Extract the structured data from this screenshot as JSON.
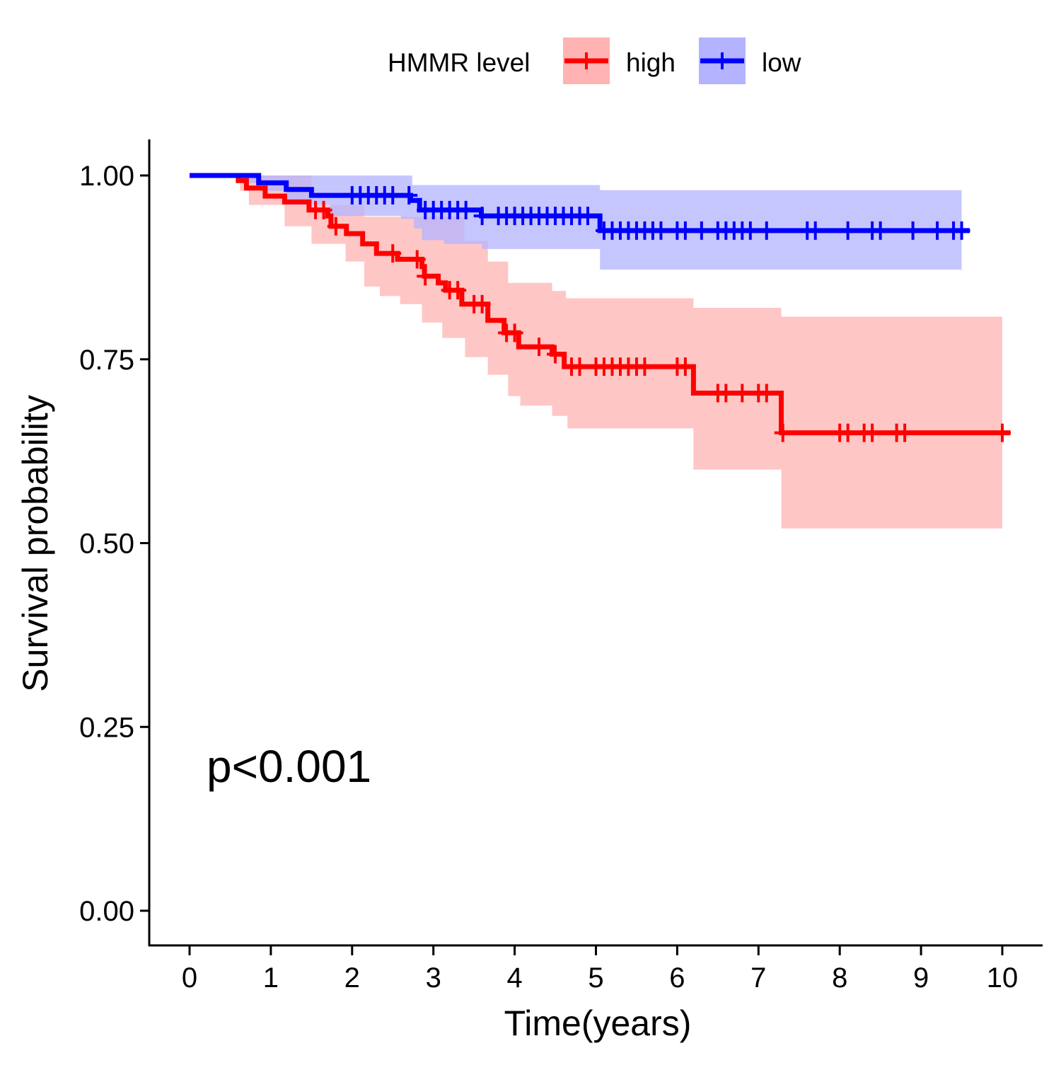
{
  "chart_data": {
    "type": "line",
    "subtype": "kaplan-meier",
    "xlabel": "Time(years)",
    "ylabel": "Survival probability",
    "xlim": [
      0,
      10
    ],
    "ylim": [
      0,
      1
    ],
    "xticks": [
      "0",
      "1",
      "2",
      "3",
      "4",
      "5",
      "6",
      "7",
      "8",
      "9",
      "10"
    ],
    "yticks": [
      "0.00",
      "0.25",
      "0.50",
      "0.75",
      "1.00"
    ],
    "grid": false,
    "legend": {
      "title": "HMMR level",
      "placement": "top",
      "entries": [
        "high",
        "low"
      ]
    },
    "annotation": "p<0.001",
    "series": [
      {
        "name": "high",
        "color": "#FF0000",
        "ci_color": "#FFB3B3",
        "end_time": 10.1,
        "steps": [
          [
            0,
            1.0
          ],
          [
            0.6,
            0.993
          ],
          [
            0.7,
            0.983
          ],
          [
            0.93,
            0.972
          ],
          [
            1.17,
            0.964
          ],
          [
            1.47,
            0.953
          ],
          [
            1.7,
            0.945
          ],
          [
            1.74,
            0.931
          ],
          [
            1.93,
            0.921
          ],
          [
            2.13,
            0.907
          ],
          [
            2.3,
            0.894
          ],
          [
            2.56,
            0.886
          ],
          [
            2.86,
            0.876
          ],
          [
            2.89,
            0.863
          ],
          [
            3.06,
            0.854
          ],
          [
            3.15,
            0.844
          ],
          [
            3.35,
            0.825
          ],
          [
            3.67,
            0.803
          ],
          [
            3.87,
            0.786
          ],
          [
            4.05,
            0.767
          ],
          [
            4.46,
            0.757
          ],
          [
            4.61,
            0.74
          ],
          [
            6.2,
            0.704
          ],
          [
            7.28,
            0.65
          ]
        ],
        "ci_upper": [
          [
            0,
            1.0
          ],
          [
            1.5,
            0.99
          ],
          [
            1.5,
            0.96
          ],
          [
            2.15,
            0.944
          ],
          [
            3.38,
            0.911
          ],
          [
            3.67,
            0.883
          ],
          [
            3.92,
            0.854
          ],
          [
            4.46,
            0.843
          ],
          [
            4.63,
            0.833
          ],
          [
            6.2,
            0.82
          ],
          [
            7.28,
            0.808
          ]
        ],
        "ci_lower": [
          [
            0,
            1.0
          ],
          [
            0.62,
            0.979
          ],
          [
            0.73,
            0.96
          ],
          [
            1.17,
            0.931
          ],
          [
            1.5,
            0.907
          ],
          [
            1.92,
            0.883
          ],
          [
            2.15,
            0.849
          ],
          [
            2.34,
            0.836
          ],
          [
            2.59,
            0.825
          ],
          [
            2.86,
            0.8
          ],
          [
            3.11,
            0.779
          ],
          [
            3.39,
            0.753
          ],
          [
            3.67,
            0.729
          ],
          [
            3.92,
            0.7
          ],
          [
            4.07,
            0.687
          ],
          [
            4.46,
            0.673
          ],
          [
            4.65,
            0.656
          ],
          [
            6.2,
            0.6
          ],
          [
            7.28,
            0.52
          ]
        ],
        "ci_end": 10.0,
        "censored": [
          1.55,
          1.65,
          1.8,
          2.5,
          2.8,
          2.9,
          3.2,
          3.3,
          3.5,
          3.6,
          3.9,
          4.0,
          4.3,
          4.5,
          4.7,
          4.8,
          5.0,
          5.1,
          5.2,
          5.3,
          5.4,
          5.5,
          5.6,
          6.0,
          6.1,
          6.5,
          6.6,
          6.8,
          7.0,
          7.1,
          7.3,
          8.0,
          8.1,
          8.3,
          8.4,
          8.7,
          8.8,
          10.0
        ]
      },
      {
        "name": "low",
        "color": "#0000FF",
        "ci_color": "#B3B3FF",
        "end_time": 9.6,
        "steps": [
          [
            0,
            1.0
          ],
          [
            0.85,
            0.99
          ],
          [
            1.19,
            0.981
          ],
          [
            1.5,
            0.973
          ],
          [
            2.72,
            0.966
          ],
          [
            2.83,
            0.953
          ],
          [
            3.59,
            0.945
          ],
          [
            5.05,
            0.925
          ]
        ],
        "ci_upper": [
          [
            0,
            1.0
          ],
          [
            2.74,
            0.987
          ],
          [
            5.05,
            0.98
          ]
        ],
        "ci_lower": [
          [
            0,
            1.0
          ],
          [
            0.62,
            0.99
          ],
          [
            0.9,
            0.979
          ],
          [
            1.19,
            0.96
          ],
          [
            1.73,
            0.945
          ],
          [
            2.6,
            0.941
          ],
          [
            2.76,
            0.928
          ],
          [
            2.86,
            0.912
          ],
          [
            3.13,
            0.907
          ],
          [
            3.6,
            0.9
          ],
          [
            5.05,
            0.872
          ]
        ],
        "ci_end": 9.5,
        "censored": [
          2.0,
          2.1,
          2.2,
          2.3,
          2.4,
          2.5,
          2.7,
          2.9,
          3.0,
          3.1,
          3.2,
          3.3,
          3.4,
          3.6,
          3.8,
          3.9,
          4.0,
          4.1,
          4.2,
          4.3,
          4.4,
          4.5,
          4.6,
          4.7,
          4.8,
          4.9,
          5.1,
          5.2,
          5.3,
          5.4,
          5.5,
          5.6,
          5.7,
          5.8,
          6.0,
          6.1,
          6.3,
          6.5,
          6.6,
          6.7,
          6.8,
          6.9,
          7.1,
          7.6,
          7.7,
          8.1,
          8.4,
          8.5,
          8.9,
          9.2,
          9.4,
          9.5
        ]
      }
    ]
  }
}
